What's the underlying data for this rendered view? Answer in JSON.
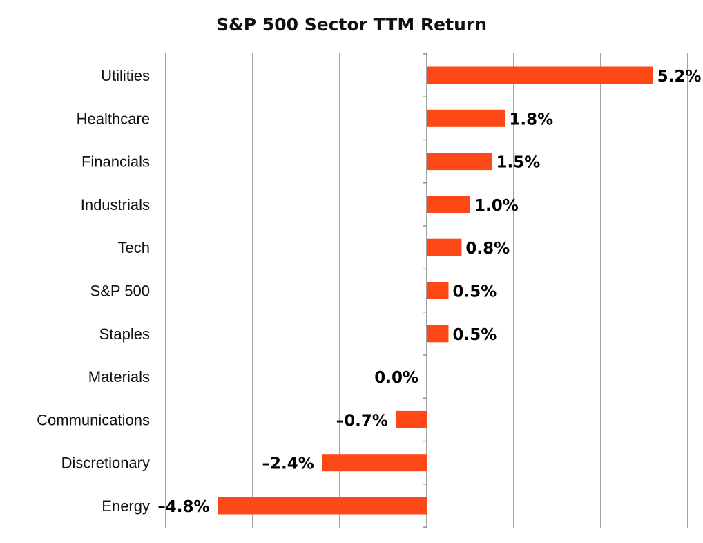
{
  "chart_data": {
    "type": "bar",
    "orientation": "horizontal",
    "title": "S&P 500 Sector TTM Return",
    "xlabel": "",
    "ylabel": "",
    "categories": [
      "Utilities",
      "Healthcare",
      "Financials",
      "Industrials",
      "Tech",
      "S&P 500",
      "Staples",
      "Materials",
      "Communications",
      "Discretionary",
      "Energy"
    ],
    "values": [
      5.2,
      1.8,
      1.5,
      1.0,
      0.8,
      0.5,
      0.5,
      0.0,
      -0.7,
      -2.4,
      -4.8
    ],
    "value_labels": [
      "5.2%",
      "1.8%",
      "1.5%",
      "1.0%",
      "0.8%",
      "0.5%",
      "0.5%",
      "0.0%",
      "–0.7%",
      "–2.4%",
      "–4.8%"
    ],
    "xlim": [
      -6,
      6
    ],
    "gridlines_at": [
      -6,
      -4,
      -2,
      0,
      2,
      4,
      6
    ],
    "grid": true,
    "legend": "none",
    "colors": {
      "bar": "#ff4817",
      "grid": "#8a8a8a",
      "text": "#000000"
    }
  }
}
